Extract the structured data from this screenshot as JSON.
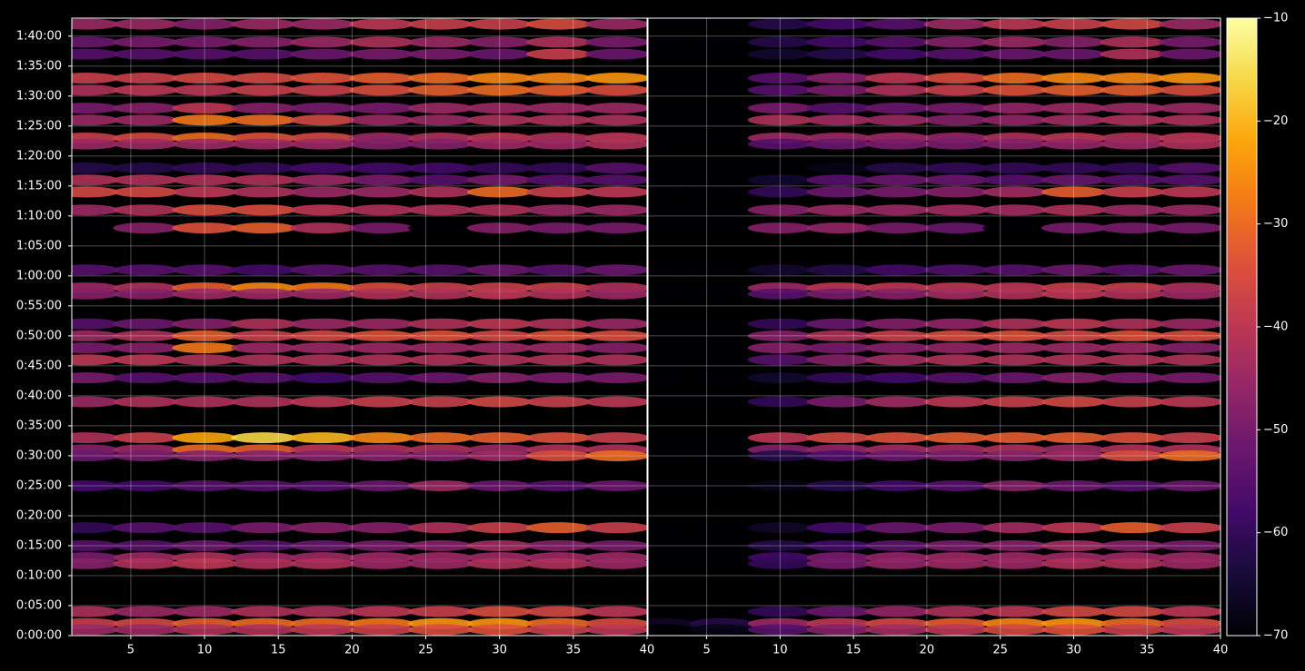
{
  "chart_data": [
    {
      "type": "heatmap",
      "colormap": "inferno",
      "x": [
        2,
        6,
        10,
        14,
        18,
        22,
        26,
        30,
        34,
        38
      ],
      "y": [
        102,
        99,
        97,
        93,
        91,
        88,
        86,
        83,
        82,
        78,
        76,
        74,
        71,
        68,
        61,
        58,
        57,
        52,
        50,
        48,
        46,
        43,
        39,
        33,
        31,
        30,
        25,
        18,
        15,
        13,
        12,
        4,
        2,
        1
      ],
      "z": [
        [
          -45,
          -45,
          -48,
          -45,
          -45,
          -40,
          -38,
          -38,
          -35,
          -45
        ],
        [
          -52,
          -50,
          -50,
          -48,
          -45,
          -42,
          -45,
          -48,
          -42,
          -50
        ],
        [
          -55,
          -55,
          -55,
          -55,
          -52,
          -50,
          -50,
          -52,
          -38,
          -52
        ],
        [
          -38,
          -38,
          -36,
          -36,
          -34,
          -32,
          -30,
          -26,
          -26,
          -24
        ],
        [
          -42,
          -40,
          -40,
          -38,
          -38,
          -35,
          -32,
          -30,
          -32,
          -35
        ],
        [
          -50,
          -48,
          -40,
          -48,
          -50,
          -50,
          -45,
          -45,
          -45,
          -45
        ],
        [
          -45,
          -45,
          -28,
          -30,
          -36,
          -45,
          -45,
          -42,
          -42,
          -42
        ],
        [
          -38,
          -36,
          -30,
          -34,
          -36,
          -45,
          -42,
          -40,
          -42,
          -40
        ],
        [
          -45,
          -45,
          -45,
          -45,
          -45,
          -48,
          -48,
          -45,
          -45,
          -42
        ],
        [
          -62,
          -62,
          -60,
          -60,
          -58,
          -58,
          -58,
          -60,
          -60,
          -55
        ],
        [
          -42,
          -42,
          -42,
          -42,
          -45,
          -50,
          -55,
          -50,
          -55,
          -55
        ],
        [
          -36,
          -36,
          -40,
          -42,
          -45,
          -45,
          -42,
          -30,
          -38,
          -40
        ],
        [
          -45,
          -42,
          -35,
          -35,
          -40,
          -42,
          -42,
          -42,
          -45,
          -45
        ],
        [
          -70,
          -48,
          -34,
          -32,
          -42,
          -50,
          -70,
          -48,
          -50,
          -50
        ],
        [
          -55,
          -55,
          -55,
          -58,
          -55,
          -55,
          -55,
          -52,
          -55,
          -52
        ],
        [
          -45,
          -42,
          -32,
          -26,
          -28,
          -35,
          -38,
          -38,
          -38,
          -42
        ],
        [
          -48,
          -48,
          -45,
          -45,
          -45,
          -42,
          -42,
          -40,
          -42,
          -45
        ],
        [
          -55,
          -52,
          -48,
          -42,
          -45,
          -45,
          -42,
          -40,
          -42,
          -45
        ],
        [
          -45,
          -42,
          -32,
          -38,
          -36,
          -34,
          -34,
          -36,
          -34,
          -35
        ],
        [
          -50,
          -48,
          -28,
          -45,
          -45,
          -45,
          -45,
          -45,
          -45,
          -48
        ],
        [
          -40,
          -40,
          -42,
          -42,
          -42,
          -42,
          -42,
          -42,
          -42,
          -42
        ],
        [
          -50,
          -55,
          -55,
          -55,
          -58,
          -55,
          -52,
          -48,
          -50,
          -50
        ],
        [
          -45,
          -42,
          -42,
          -42,
          -40,
          -38,
          -38,
          -36,
          -38,
          -40
        ],
        [
          -42,
          -38,
          -22,
          -16,
          -20,
          -26,
          -30,
          -32,
          -34,
          -38
        ],
        [
          -48,
          -45,
          -30,
          -32,
          -40,
          -42,
          -42,
          -45,
          -42,
          -42
        ],
        [
          -52,
          -50,
          -48,
          -48,
          -48,
          -48,
          -48,
          -45,
          -35,
          -30
        ],
        [
          -58,
          -58,
          -55,
          -55,
          -55,
          -52,
          -45,
          -52,
          -55,
          -52
        ],
        [
          -60,
          -55,
          -55,
          -50,
          -48,
          -48,
          -42,
          -38,
          -32,
          -38
        ],
        [
          -55,
          -55,
          -52,
          -55,
          -52,
          -50,
          -48,
          -44,
          -48,
          -50
        ],
        [
          -50,
          -45,
          -42,
          -45,
          -45,
          -45,
          -45,
          -45,
          -45,
          -45
        ],
        [
          -48,
          -42,
          -40,
          -42,
          -42,
          -45,
          -45,
          -42,
          -42,
          -45
        ],
        [
          -42,
          -45,
          -45,
          -42,
          -42,
          -40,
          -38,
          -35,
          -36,
          -40
        ],
        [
          -38,
          -36,
          -32,
          -30,
          -30,
          -28,
          -24,
          -24,
          -30,
          -35
        ],
        [
          -45,
          -45,
          -42,
          -42,
          -40,
          -38,
          -35,
          -34,
          -38,
          -40
        ]
      ],
      "xlim": [
        1,
        40
      ],
      "xticks": [
        5,
        10,
        15,
        20,
        25,
        30,
        35,
        40
      ],
      "ylim": [
        0,
        103
      ],
      "yticks": [
        {
          "value": 0,
          "label": "0:00:00"
        },
        {
          "value": 5,
          "label": "0:05:00"
        },
        {
          "value": 10,
          "label": "0:10:00"
        },
        {
          "value": 15,
          "label": "0:15:00"
        },
        {
          "value": 20,
          "label": "0:20:00"
        },
        {
          "value": 25,
          "label": "0:25:00"
        },
        {
          "value": 30,
          "label": "0:30:00"
        },
        {
          "value": 35,
          "label": "0:35:00"
        },
        {
          "value": 40,
          "label": "0:40:00"
        },
        {
          "value": 45,
          "label": "0:45:00"
        },
        {
          "value": 50,
          "label": "0:50:00"
        },
        {
          "value": 55,
          "label": "0:55:00"
        },
        {
          "value": 60,
          "label": "1:00:00"
        },
        {
          "value": 65,
          "label": "1:05:00"
        },
        {
          "value": 70,
          "label": "1:10:00"
        },
        {
          "value": 75,
          "label": "1:15:00"
        },
        {
          "value": 80,
          "label": "1:20:00"
        },
        {
          "value": 85,
          "label": "1:25:00"
        },
        {
          "value": 90,
          "label": "1:30:00"
        },
        {
          "value": 95,
          "label": "1:35:00"
        },
        {
          "value": 100,
          "label": "1:40:00"
        }
      ],
      "grid": true
    },
    {
      "type": "heatmap",
      "colormap": "inferno",
      "x": [
        2,
        6,
        10,
        14,
        18,
        22,
        26,
        30,
        34,
        38
      ],
      "y": [
        102,
        99,
        97,
        93,
        91,
        88,
        86,
        83,
        82,
        78,
        76,
        74,
        71,
        68,
        61,
        58,
        57,
        52,
        50,
        48,
        46,
        43,
        39,
        33,
        31,
        30,
        25,
        18,
        15,
        13,
        12,
        4,
        2,
        1
      ],
      "z": [
        [
          -70,
          -70,
          -62,
          -58,
          -55,
          -45,
          -40,
          -38,
          -36,
          -45
        ],
        [
          -70,
          -70,
          -62,
          -58,
          -55,
          -48,
          -45,
          -48,
          -42,
          -50
        ],
        [
          -70,
          -70,
          -65,
          -62,
          -58,
          -55,
          -52,
          -52,
          -42,
          -52
        ],
        [
          -70,
          -70,
          -55,
          -48,
          -40,
          -35,
          -30,
          -26,
          -26,
          -24
        ],
        [
          -70,
          -70,
          -55,
          -50,
          -42,
          -38,
          -34,
          -32,
          -32,
          -35
        ],
        [
          -70,
          -70,
          -50,
          -55,
          -52,
          -50,
          -46,
          -45,
          -45,
          -45
        ],
        [
          -70,
          -70,
          -42,
          -44,
          -45,
          -48,
          -46,
          -44,
          -42,
          -42
        ],
        [
          -70,
          -70,
          -45,
          -45,
          -45,
          -46,
          -42,
          -40,
          -42,
          -40
        ],
        [
          -70,
          -70,
          -55,
          -52,
          -50,
          -50,
          -48,
          -46,
          -45,
          -42
        ],
        [
          -70,
          -70,
          -70,
          -68,
          -62,
          -60,
          -60,
          -60,
          -60,
          -55
        ],
        [
          -70,
          -70,
          -65,
          -55,
          -52,
          -52,
          -55,
          -52,
          -55,
          -55
        ],
        [
          -70,
          -70,
          -60,
          -52,
          -50,
          -48,
          -44,
          -32,
          -38,
          -40
        ],
        [
          -70,
          -70,
          -48,
          -45,
          -45,
          -44,
          -44,
          -42,
          -45,
          -45
        ],
        [
          -70,
          -70,
          -48,
          -46,
          -50,
          -52,
          -70,
          -50,
          -50,
          -50
        ],
        [
          -70,
          -70,
          -65,
          -62,
          -58,
          -56,
          -55,
          -52,
          -55,
          -52
        ],
        [
          -70,
          -70,
          -45,
          -40,
          -40,
          -40,
          -40,
          -38,
          -38,
          -42
        ],
        [
          -70,
          -70,
          -55,
          -50,
          -48,
          -44,
          -42,
          -40,
          -42,
          -45
        ],
        [
          -70,
          -70,
          -60,
          -52,
          -48,
          -46,
          -42,
          -40,
          -42,
          -45
        ],
        [
          -70,
          -70,
          -48,
          -42,
          -38,
          -35,
          -34,
          -36,
          -34,
          -35
        ],
        [
          -70,
          -70,
          -48,
          -50,
          -48,
          -46,
          -45,
          -45,
          -45,
          -48
        ],
        [
          -70,
          -70,
          -55,
          -48,
          -44,
          -42,
          -42,
          -42,
          -42,
          -42
        ],
        [
          -70,
          -70,
          -65,
          -60,
          -58,
          -55,
          -52,
          -48,
          -50,
          -50
        ],
        [
          -70,
          -70,
          -60,
          -50,
          -44,
          -40,
          -38,
          -36,
          -38,
          -40
        ],
        [
          -70,
          -70,
          -40,
          -36,
          -34,
          -32,
          -32,
          -32,
          -34,
          -38
        ],
        [
          -70,
          -70,
          -48,
          -46,
          -44,
          -44,
          -42,
          -45,
          -42,
          -42
        ],
        [
          -70,
          -70,
          -62,
          -56,
          -52,
          -50,
          -48,
          -45,
          -35,
          -30
        ],
        [
          -70,
          -70,
          -68,
          -62,
          -58,
          -55,
          -48,
          -52,
          -55,
          -52
        ],
        [
          -70,
          -70,
          -66,
          -58,
          -52,
          -50,
          -44,
          -40,
          -32,
          -38
        ],
        [
          -70,
          -70,
          -62,
          -58,
          -54,
          -50,
          -48,
          -44,
          -48,
          -50
        ],
        [
          -70,
          -70,
          -58,
          -50,
          -46,
          -45,
          -45,
          -45,
          -45,
          -45
        ],
        [
          -70,
          -70,
          -60,
          -50,
          -46,
          -45,
          -45,
          -42,
          -42,
          -45
        ],
        [
          -70,
          -70,
          -60,
          -52,
          -46,
          -42,
          -40,
          -36,
          -36,
          -40
        ],
        [
          -66,
          -62,
          -45,
          -40,
          -36,
          -32,
          -26,
          -24,
          -30,
          -35
        ],
        [
          -70,
          -68,
          -55,
          -48,
          -44,
          -40,
          -36,
          -34,
          -38,
          -40
        ]
      ],
      "xlim": [
        1,
        40
      ],
      "xticks": [
        5,
        10,
        15,
        20,
        25,
        30,
        35,
        40
      ],
      "ylim": [
        0,
        103
      ],
      "grid": true,
      "colorbar": {
        "lim": [
          -70,
          -10
        ],
        "ticks": [
          {
            "value": -70,
            "label": "−70"
          },
          {
            "value": -60,
            "label": "−60"
          },
          {
            "value": -50,
            "label": "−50"
          },
          {
            "value": -40,
            "label": "−40"
          },
          {
            "value": -30,
            "label": "−30"
          },
          {
            "value": -20,
            "label": "−20"
          },
          {
            "value": -10,
            "label": "−10"
          }
        ]
      }
    }
  ]
}
